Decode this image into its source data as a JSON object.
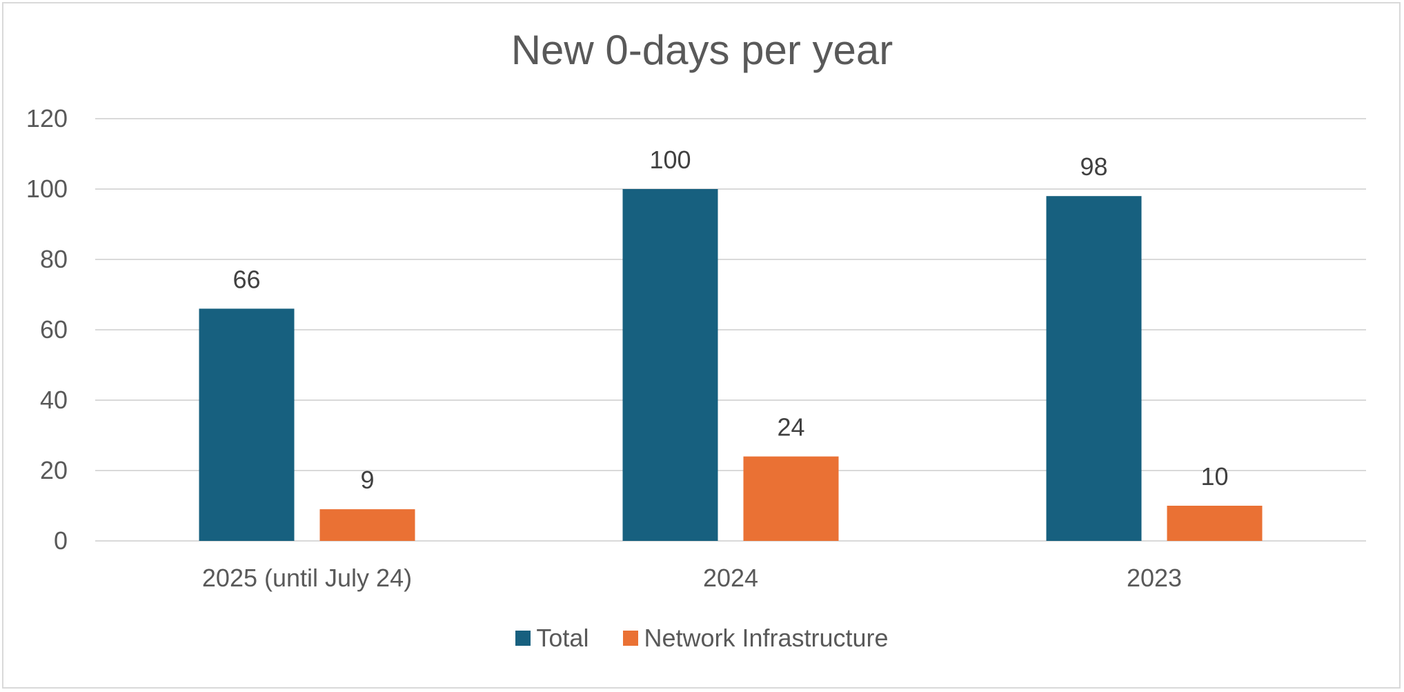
{
  "chart_data": {
    "type": "bar",
    "title": "New 0-days per year",
    "categories": [
      "2025 (until July 24)",
      "2024",
      "2023"
    ],
    "series": [
      {
        "name": "Total",
        "color": "#17607f",
        "values": [
          66,
          100,
          98
        ]
      },
      {
        "name": "Network Infrastructure",
        "color": "#ea7134",
        "values": [
          9,
          24,
          10
        ]
      }
    ],
    "ylim": [
      0,
      120
    ],
    "yticks": [
      0,
      20,
      40,
      60,
      80,
      100,
      120
    ],
    "grid": true,
    "legend_position": "bottom",
    "data_labels": true
  }
}
